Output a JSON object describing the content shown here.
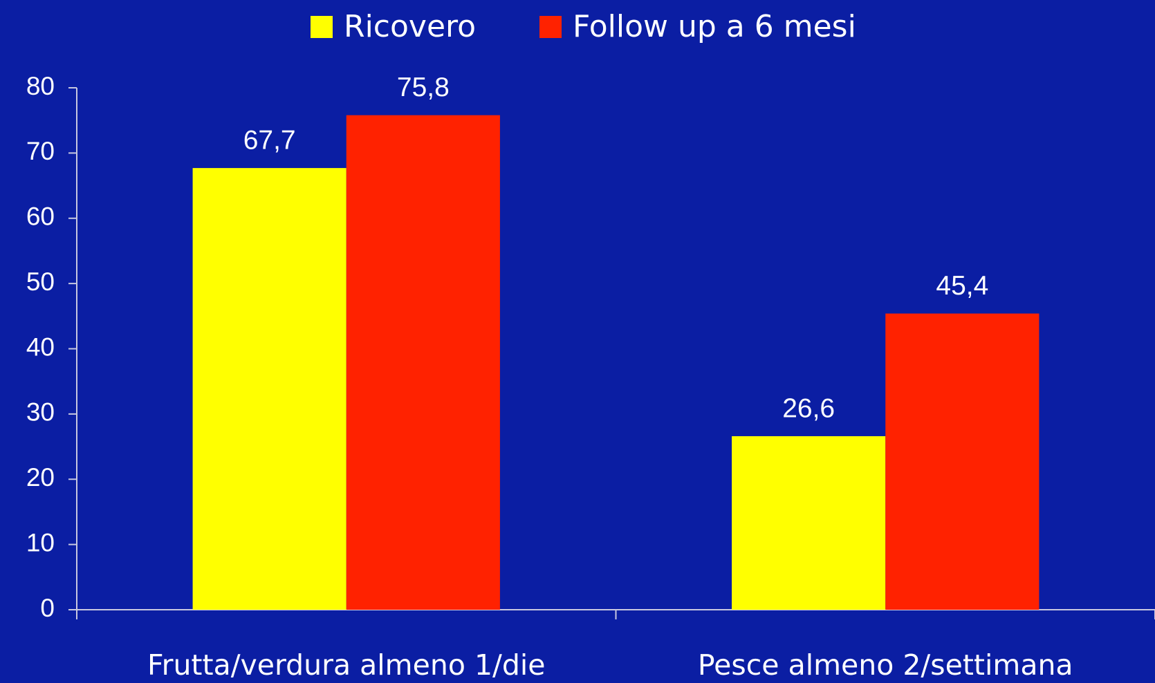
{
  "chart_data": {
    "type": "bar",
    "categories": [
      "Frutta/verdura almeno 1/die",
      "Pesce almeno 2/settimana"
    ],
    "series": [
      {
        "name": "Ricovero",
        "color": "#ffff00",
        "values": [
          67.7,
          26.6
        ],
        "value_labels": [
          "67,7",
          "26,6"
        ]
      },
      {
        "name": "Follow up a 6 mesi",
        "color": "#ff2200",
        "values": [
          75.8,
          45.4
        ],
        "value_labels": [
          "75,8",
          "45,4"
        ]
      }
    ],
    "ylim": [
      0,
      80
    ],
    "yticks": [
      0,
      10,
      20,
      30,
      40,
      50,
      60,
      70,
      80
    ],
    "grid": false,
    "legend": "top"
  }
}
